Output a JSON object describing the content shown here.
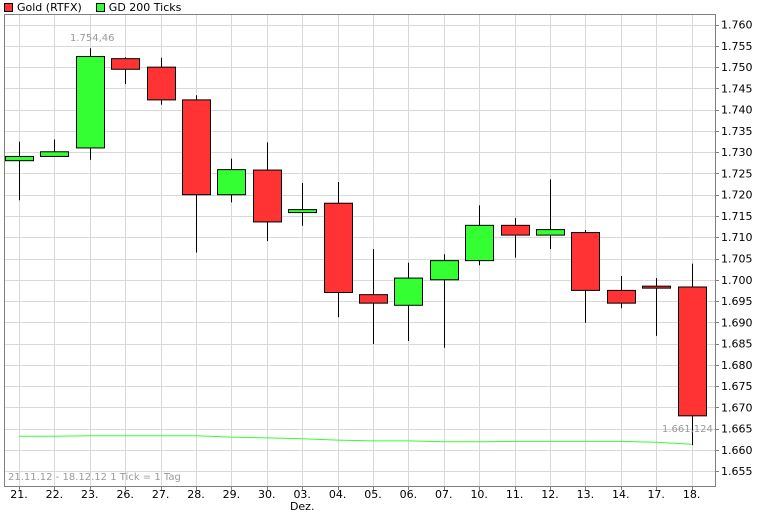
{
  "legend": [
    {
      "label": "Gold (RTFX)",
      "color": "#ff3333"
    },
    {
      "label": "GD 200 Ticks",
      "color": "#33ff33"
    }
  ],
  "footnote": "21.11.12 - 18.12.12   1 Tick = 1 Tag",
  "annotations": {
    "high_label": "1.754,46",
    "low_label": "1.661,124"
  },
  "colors": {
    "up": "#33ff33",
    "down": "#ff3333",
    "ma": "#33ff33",
    "grid": "#d8d8d8",
    "frame": "#808080"
  },
  "chart_data": {
    "type": "candlestick",
    "y_ticks": [
      "1.655",
      "1.660",
      "1.665",
      "1.670",
      "1.675",
      "1.680",
      "1.685",
      "1.690",
      "1.695",
      "1.700",
      "1.705",
      "1.710",
      "1.715",
      "1.720",
      "1.725",
      "1.730",
      "1.735",
      "1.740",
      "1.745",
      "1.750",
      "1.755",
      "1.760"
    ],
    "ylim": [
      1651.5,
      1762.5
    ],
    "month_label": "Dez.",
    "candles": [
      {
        "date": "21.",
        "open": 1728.0,
        "close": 1729.0,
        "high": 1732.5,
        "low": 1718.7
      },
      {
        "date": "22.",
        "open": 1729.0,
        "close": 1730.1,
        "high": 1733.0,
        "low": 1729.0
      },
      {
        "date": "23.",
        "open": 1731.0,
        "close": 1752.5,
        "high": 1754.46,
        "low": 1728.2
      },
      {
        "date": "26.",
        "open": 1752.0,
        "close": 1749.5,
        "high": 1752.3,
        "low": 1746.0
      },
      {
        "date": "27.",
        "open": 1750.0,
        "close": 1742.3,
        "high": 1752.2,
        "low": 1741.2
      },
      {
        "date": "28.",
        "open": 1742.3,
        "close": 1720.0,
        "high": 1743.4,
        "low": 1706.4
      },
      {
        "date": "29.",
        "open": 1720.0,
        "close": 1725.9,
        "high": 1728.5,
        "low": 1718.2
      },
      {
        "date": "30.",
        "open": 1725.8,
        "close": 1713.6,
        "high": 1732.3,
        "low": 1709.1
      },
      {
        "date": "03.",
        "open": 1715.8,
        "close": 1716.5,
        "high": 1722.8,
        "low": 1712.7
      },
      {
        "date": "04.",
        "open": 1718.0,
        "close": 1697.0,
        "high": 1723.0,
        "low": 1691.2
      },
      {
        "date": "05.",
        "open": 1696.5,
        "close": 1694.5,
        "high": 1707.2,
        "low": 1684.9
      },
      {
        "date": "06.",
        "open": 1694.0,
        "close": 1700.4,
        "high": 1704.0,
        "low": 1685.6
      },
      {
        "date": "07.",
        "open": 1700.0,
        "close": 1704.5,
        "high": 1706.0,
        "low": 1684.0
      },
      {
        "date": "10.",
        "open": 1704.5,
        "close": 1712.8,
        "high": 1717.5,
        "low": 1703.4
      },
      {
        "date": "11.",
        "open": 1712.8,
        "close": 1710.5,
        "high": 1714.5,
        "low": 1705.2
      },
      {
        "date": "12.",
        "open": 1710.5,
        "close": 1711.8,
        "high": 1723.6,
        "low": 1707.2
      },
      {
        "date": "13.",
        "open": 1711.1,
        "close": 1697.5,
        "high": 1711.7,
        "low": 1689.9
      },
      {
        "date": "14.",
        "open": 1697.5,
        "close": 1694.5,
        "high": 1700.9,
        "low": 1693.3
      },
      {
        "date": "17.",
        "open": 1698.5,
        "close": 1698.3,
        "high": 1700.4,
        "low": 1686.8
      },
      {
        "date": "18.",
        "open": 1698.3,
        "close": 1668.0,
        "high": 1703.8,
        "low": 1661.124
      }
    ],
    "ma_series": {
      "name": "GD 200 Ticks",
      "values": [
        1663.2,
        1663.2,
        1663.3,
        1663.3,
        1663.3,
        1663.3,
        1663.0,
        1662.8,
        1662.6,
        1662.3,
        1662.1,
        1662.1,
        1661.9,
        1661.9,
        1662.0,
        1662.0,
        1662.0,
        1662.0,
        1661.8,
        1661.3
      ]
    }
  }
}
